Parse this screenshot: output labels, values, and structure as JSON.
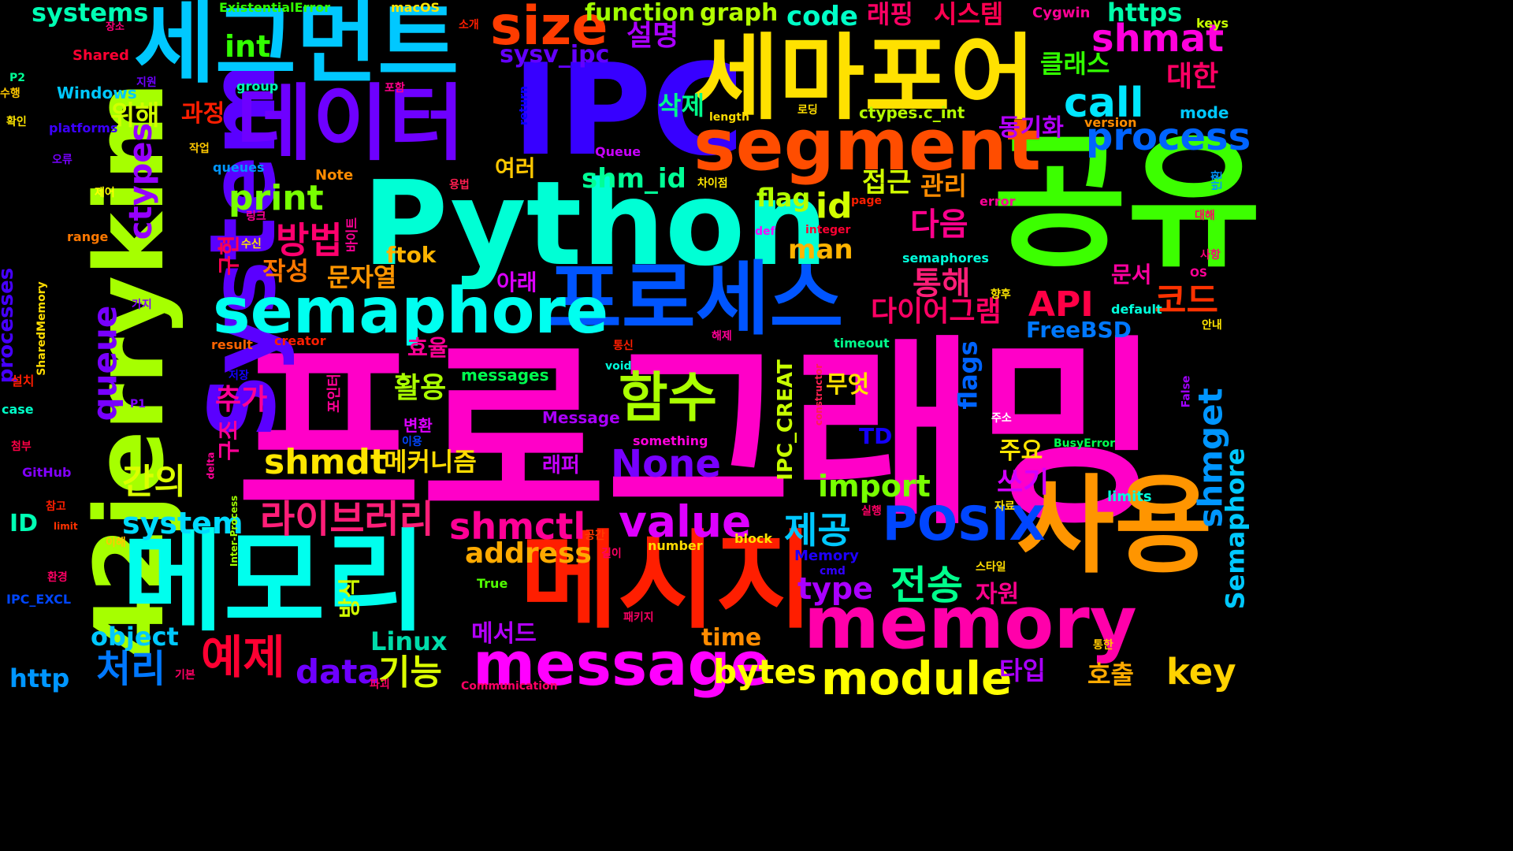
{
  "words": [
    {
      "text": "프로그래밍",
      "color": "#ff00c8"
    },
    {
      "text": "공유",
      "color": "#3cff00"
    },
    {
      "text": "Python",
      "color": "#00ffd5"
    },
    {
      "text": "IPC",
      "color": "#3700ff"
    },
    {
      "text": "42jerrykim",
      "color": "#a6ff00"
    },
    {
      "text": "System",
      "color": "#5a00ff"
    },
    {
      "text": "메모리",
      "color": "#00ffee"
    },
    {
      "text": "메시지",
      "color": "#ff1e00"
    },
    {
      "text": "사용",
      "color": "#ff9500"
    },
    {
      "text": "세그먼트",
      "color": "#00c8ff"
    },
    {
      "text": "세마포어",
      "color": "#ffe100"
    },
    {
      "text": "데이터",
      "color": "#6e00ff"
    },
    {
      "text": "segment",
      "color": "#ff4d00"
    },
    {
      "text": "프로세스",
      "color": "#0055ff"
    },
    {
      "text": "memory",
      "color": "#ff00aa"
    },
    {
      "text": "semaphore",
      "color": "#00fff0"
    },
    {
      "text": "message",
      "color": "#ff00ff"
    },
    {
      "text": "size",
      "color": "#ff3c00"
    },
    {
      "text": "함수",
      "color": "#aaff00"
    },
    {
      "text": "POSIX",
      "color": "#0046ff"
    },
    {
      "text": "value",
      "color": "#dd00ff"
    },
    {
      "text": "module",
      "color": "#ffff00"
    },
    {
      "text": "라이브러리",
      "color": "#ff1e78"
    },
    {
      "text": "shmctl",
      "color": "#ff0096"
    },
    {
      "text": "shmdt",
      "color": "#ffe600"
    },
    {
      "text": "process",
      "color": "#0064ff"
    },
    {
      "text": "shmat",
      "color": "#ff00dc"
    },
    {
      "text": "call",
      "color": "#00e6ff"
    },
    {
      "text": "None",
      "color": "#7800ff"
    },
    {
      "text": "예제",
      "color": "#ff0032"
    },
    {
      "text": "bytes",
      "color": "#ffff00"
    },
    {
      "text": "key",
      "color": "#ffd200"
    },
    {
      "text": "data",
      "color": "#6e00ff"
    },
    {
      "text": "처리",
      "color": "#0078ff"
    },
    {
      "text": "기능",
      "color": "#dcff00"
    },
    {
      "text": "전송",
      "color": "#00ff8c"
    },
    {
      "text": "제공",
      "color": "#00c8ff"
    },
    {
      "text": "방법",
      "color": "#ff006e"
    },
    {
      "text": "print",
      "color": "#78ff00"
    },
    {
      "text": "int",
      "color": "#32ff00"
    },
    {
      "text": "id",
      "color": "#d2ff00"
    },
    {
      "text": "API",
      "color": "#ff0046"
    },
    {
      "text": "코드",
      "color": "#ff3200"
    },
    {
      "text": "shmget",
      "color": "#0096ff"
    },
    {
      "text": "queue",
      "color": "#7800ff"
    },
    {
      "text": "ctypes",
      "color": "#9600ff"
    },
    {
      "text": "간의",
      "color": "#dcff00"
    },
    {
      "text": "system",
      "color": "#00dcff"
    },
    {
      "text": "import",
      "color": "#78ff00"
    },
    {
      "text": "type",
      "color": "#aa00ff"
    },
    {
      "text": "address",
      "color": "#ffaa00"
    },
    {
      "text": "object",
      "color": "#00c8ff"
    },
    {
      "text": "Linux",
      "color": "#00dcaa"
    },
    {
      "text": "http",
      "color": "#0096ff"
    },
    {
      "text": "systems",
      "color": "#00ffb4"
    },
    {
      "text": "sysv_ipc",
      "color": "#6400ff"
    },
    {
      "text": "function",
      "color": "#a0ff00"
    },
    {
      "text": "graph",
      "color": "#b4ff00"
    },
    {
      "text": "code",
      "color": "#00ffc8"
    },
    {
      "text": "https",
      "color": "#00ffaa"
    },
    {
      "text": "shm_id",
      "color": "#00ff96"
    },
    {
      "text": "flag",
      "color": "#b4ff00"
    },
    {
      "text": "man",
      "color": "#ffb400"
    },
    {
      "text": "ftok",
      "color": "#ffb400"
    },
    {
      "text": "flags",
      "color": "#0064ff"
    },
    {
      "text": "time",
      "color": "#ff8c00"
    },
    {
      "text": "Semaphore",
      "color": "#00c8ff"
    },
    {
      "text": "IPC_CREAT",
      "color": "#c8ff00"
    },
    {
      "text": "FreeBSD",
      "color": "#0078ff"
    },
    {
      "text": "TD",
      "color": "#1400ff"
    },
    {
      "text": "processes",
      "color": "#4600ff"
    },
    {
      "text": "설명",
      "color": "#aa00ff"
    },
    {
      "text": "래핑",
      "color": "#ff0064"
    },
    {
      "text": "시스템",
      "color": "#ff0050"
    },
    {
      "text": "클래스",
      "color": "#32ff00"
    },
    {
      "text": "대한",
      "color": "#ff0064"
    },
    {
      "text": "동기화",
      "color": "#b400ff"
    },
    {
      "text": "삭제",
      "color": "#00ff8c"
    },
    {
      "text": "위해",
      "color": "#d2ff00"
    },
    {
      "text": "과정",
      "color": "#ff1e00"
    },
    {
      "text": "접근",
      "color": "#d2ff00"
    },
    {
      "text": "관리",
      "color": "#ff8c00"
    },
    {
      "text": "다음",
      "color": "#ff008c"
    },
    {
      "text": "통해",
      "color": "#ff1e78"
    },
    {
      "text": "다이어그램",
      "color": "#ff0064"
    },
    {
      "text": "작성",
      "color": "#ff7800"
    },
    {
      "text": "문자열",
      "color": "#ff9600"
    },
    {
      "text": "추가",
      "color": "#ff0096"
    },
    {
      "text": "활용",
      "color": "#aaff00"
    },
    {
      "text": "효율",
      "color": "#ff0096"
    },
    {
      "text": "메커니즘",
      "color": "#ffdc00"
    },
    {
      "text": "무엇",
      "color": "#ffe100"
    },
    {
      "text": "주요",
      "color": "#ffe600"
    },
    {
      "text": "쓰기",
      "color": "#d200ff"
    },
    {
      "text": "문서",
      "color": "#ff00a0"
    },
    {
      "text": "자원",
      "color": "#ff008c"
    },
    {
      "text": "타입",
      "color": "#aa00ff"
    },
    {
      "text": "호출",
      "color": "#ffaa00"
    },
    {
      "text": "메서드",
      "color": "#b400ff"
    },
    {
      "text": "여러",
      "color": "#ffc800"
    },
    {
      "text": "아래",
      "color": "#dc00ff"
    },
    {
      "text": "구현",
      "color": "#ff0050"
    },
    {
      "text": "구조",
      "color": "#ff0096"
    },
    {
      "text": "방식",
      "color": "#d2ff00"
    },
    {
      "text": "바이트",
      "color": "#ff0096"
    },
    {
      "text": "포인터",
      "color": "#ff0096"
    },
    {
      "text": "변환",
      "color": "#dc00ff"
    },
    {
      "text": "래퍼",
      "color": "#c800ff"
    },
    {
      "text": "ID",
      "color": "#00ffb4"
    },
    {
      "text": "Windows",
      "color": "#00c8ff"
    },
    {
      "text": "ExistentialError",
      "color": "#32ff00"
    },
    {
      "text": "macOS",
      "color": "#ffe600"
    },
    {
      "text": "Cygwin",
      "color": "#ff0096"
    },
    {
      "text": "keys",
      "color": "#c8ff00"
    },
    {
      "text": "Shared",
      "color": "#ff0032"
    },
    {
      "text": "platforms",
      "color": "#3c00ff"
    },
    {
      "text": "group",
      "color": "#00ffb4"
    },
    {
      "text": "queues",
      "color": "#0096ff"
    },
    {
      "text": "Queue",
      "color": "#c800ff"
    },
    {
      "text": "Note",
      "color": "#ff8c00"
    },
    {
      "text": "page",
      "color": "#ff1e00"
    },
    {
      "text": "error",
      "color": "#ff0096"
    },
    {
      "text": "integer",
      "color": "#ff0032"
    },
    {
      "text": "def",
      "color": "#ff00ff"
    },
    {
      "text": "range",
      "color": "#ff7800"
    },
    {
      "text": "length",
      "color": "#ffdc00"
    },
    {
      "text": "ctypes.c_int",
      "color": "#b4ff00"
    },
    {
      "text": "mode",
      "color": "#00c8ff"
    },
    {
      "text": "version",
      "color": "#ff8c00"
    },
    {
      "text": "semaphores",
      "color": "#00ffdc"
    },
    {
      "text": "default",
      "color": "#00ffdc"
    },
    {
      "text": "timeout",
      "color": "#00ff8c"
    },
    {
      "text": "result",
      "color": "#ff6400"
    },
    {
      "text": "creator",
      "color": "#ff1e00"
    },
    {
      "text": "messages",
      "color": "#00ff50"
    },
    {
      "text": "void",
      "color": "#00ffdc"
    },
    {
      "text": "Message",
      "color": "#aa00ff"
    },
    {
      "text": "something",
      "color": "#ff00dc"
    },
    {
      "text": "BusyError",
      "color": "#00ff50"
    },
    {
      "text": "limits",
      "color": "#00ffdc"
    },
    {
      "text": "number",
      "color": "#ffdc00"
    },
    {
      "text": "block",
      "color": "#ffe100"
    },
    {
      "text": "Memory",
      "color": "#1e00ff"
    },
    {
      "text": "cmd",
      "color": "#3200ff"
    },
    {
      "text": "True",
      "color": "#50ff00"
    },
    {
      "text": "IPC_EXCL",
      "color": "#0046ff"
    },
    {
      "text": "GitHub",
      "color": "#8200ff"
    },
    {
      "text": "case",
      "color": "#00ffc8"
    },
    {
      "text": "P1",
      "color": "#8200ff"
    },
    {
      "text": "P2",
      "color": "#00ff96"
    },
    {
      "text": "Communication",
      "color": "#ff0064"
    },
    {
      "text": "return",
      "color": "#0a00ff"
    },
    {
      "text": "SharedMemory",
      "color": "#ffdc00"
    },
    {
      "text": "Inter-Process",
      "color": "#a0ff00"
    },
    {
      "text": "constructor",
      "color": "#ff1e50"
    },
    {
      "text": "False",
      "color": "#a000ff"
    },
    {
      "text": "delta",
      "color": "#ff0096"
    },
    {
      "text": "limit",
      "color": "#ff3200"
    },
    {
      "text": "장소",
      "color": "#ff0078"
    },
    {
      "text": "소개",
      "color": "#ff1e00"
    },
    {
      "text": "지원",
      "color": "#6e00ff"
    },
    {
      "text": "수행",
      "color": "#ffc800"
    },
    {
      "text": "확인",
      "color": "#ffe600"
    },
    {
      "text": "오류",
      "color": "#7800ff"
    },
    {
      "text": "제어",
      "color": "#ffff00"
    },
    {
      "text": "작업",
      "color": "#ffc800"
    },
    {
      "text": "포함",
      "color": "#ff008c"
    },
    {
      "text": "로딩",
      "color": "#ffdc00"
    },
    {
      "text": "차이점",
      "color": "#ffe600"
    },
    {
      "text": "용법",
      "color": "#ff1e50"
    },
    {
      "text": "링크",
      "color": "#ff0096"
    },
    {
      "text": "수신",
      "color": "#ffe600"
    },
    {
      "text": "가지",
      "color": "#8200ff"
    },
    {
      "text": "저장",
      "color": "#1400ff"
    },
    {
      "text": "설치",
      "color": "#ff1e00"
    },
    {
      "text": "첨부",
      "color": "#ff0046"
    },
    {
      "text": "참고",
      "color": "#ff1e00"
    },
    {
      "text": "이해",
      "color": "#ffc800"
    },
    {
      "text": "환경",
      "color": "#ff0064"
    },
    {
      "text": "기본",
      "color": "#ff0064"
    },
    {
      "text": "파괴",
      "color": "#ff0064"
    },
    {
      "text": "길이",
      "color": "#ff0064"
    },
    {
      "text": "공간",
      "color": "#ff3c00"
    },
    {
      "text": "패키지",
      "color": "#ff0064"
    },
    {
      "text": "통신",
      "color": "#ff1e00"
    },
    {
      "text": "해제",
      "color": "#ff0096"
    },
    {
      "text": "이용",
      "color": "#0046ff"
    },
    {
      "text": "실행",
      "color": "#ff0064"
    },
    {
      "text": "스타일",
      "color": "#ffdc00"
    },
    {
      "text": "자료",
      "color": "#ffe600"
    },
    {
      "text": "주소",
      "color": "#ffffff"
    },
    {
      "text": "향후",
      "color": "#ffe600"
    },
    {
      "text": "사항",
      "color": "#ff0078"
    },
    {
      "text": "안내",
      "color": "#ffe600"
    },
    {
      "text": "대해",
      "color": "#ff0064"
    },
    {
      "text": "반환",
      "color": "#0096ff"
    },
    {
      "text": "OS",
      "color": "#ff0096"
    },
    {
      "text": "통한",
      "color": "#ffc800"
    }
  ]
}
